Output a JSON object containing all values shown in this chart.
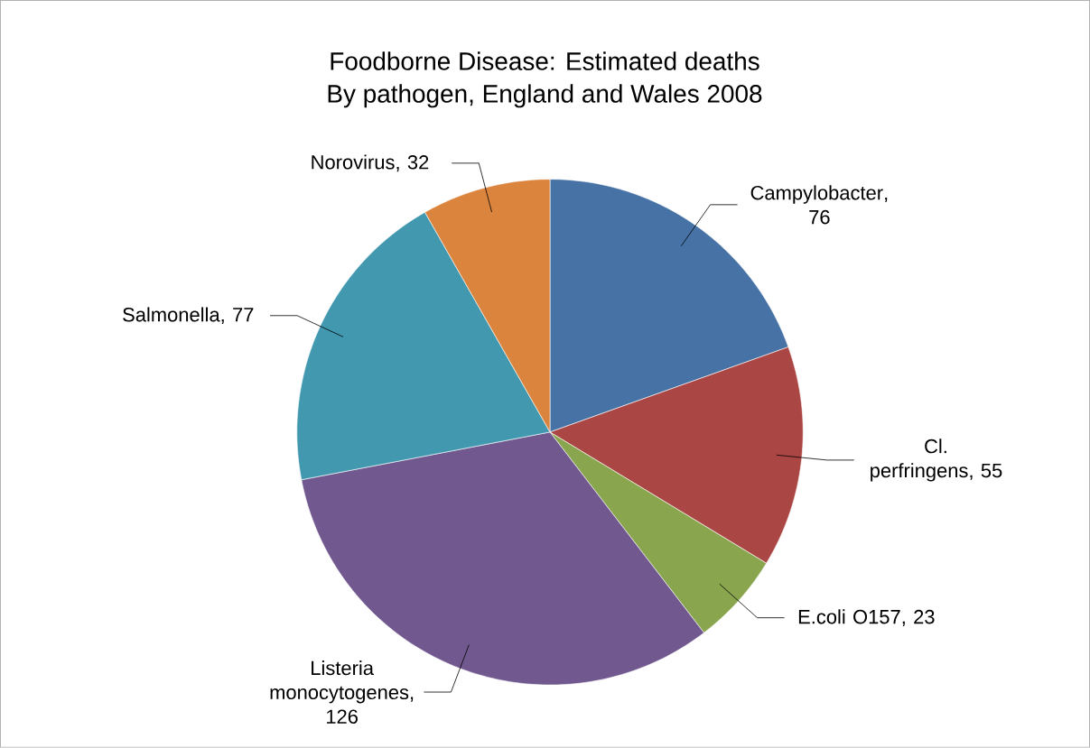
{
  "chart_data": {
    "type": "pie",
    "title": "Foodborne Disease: Estimated deaths",
    "subtitle": "By pathogen, England and Wales 2008",
    "categories": [
      "Campylobacter",
      "Cl. perfringens",
      "E.coli O157",
      "Listeria monocytogenes",
      "Salmonella",
      "Norovirus"
    ],
    "values": [
      76,
      55,
      23,
      126,
      77,
      32
    ],
    "value_labels": [
      ", 76",
      ", 55",
      ", 23",
      ", 126",
      ", 77",
      ", 32"
    ],
    "colors": [
      "#4672a6",
      "#aa4643",
      "#89a54e",
      "#71588f",
      "#4198af",
      "#db843d"
    ]
  }
}
